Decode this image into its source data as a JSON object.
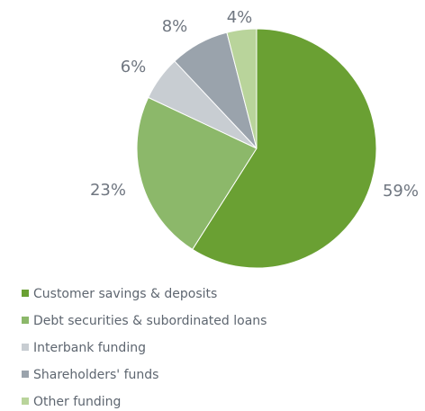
{
  "chart_data": {
    "type": "pie",
    "title": "",
    "slices": [
      {
        "label": "Customer savings & deposits",
        "value": 59,
        "display": "59%",
        "color": "#6aa033"
      },
      {
        "label": "Debt securities & subordinated loans",
        "value": 23,
        "display": "23%",
        "color": "#8cb86a"
      },
      {
        "label": "Interbank funding",
        "value": 6,
        "display": "6%",
        "color": "#c8cdd2"
      },
      {
        "label": "Shareholders' funds",
        "value": 8,
        "display": "8%",
        "color": "#9aa3ac"
      },
      {
        "label": "Other funding",
        "value": 4,
        "display": "4%",
        "color": "#b9d49b"
      }
    ],
    "legend_placement": "bottom-left"
  }
}
